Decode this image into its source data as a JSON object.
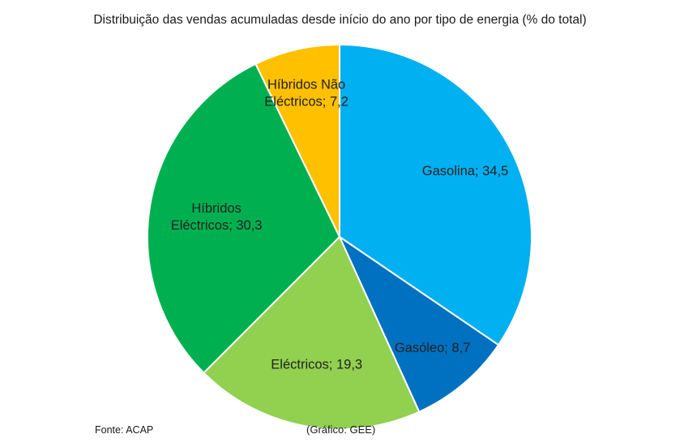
{
  "chart_data": {
    "type": "pie",
    "title": "Distribuição das vendas acumuladas desde início do ano por tipo de energia (% do total)",
    "slices": [
      {
        "name": "Gasolina",
        "value": 34.5,
        "label": "Gasolina; 34,5",
        "label_lines": [
          "Gasolina; 34,5"
        ],
        "color": "#00B0F0"
      },
      {
        "name": "Gasóleo",
        "value": 8.7,
        "label": "Gasóleo; 8,7",
        "label_lines": [
          "Gasóleo; 8,7"
        ],
        "color": "#0070C0"
      },
      {
        "name": "Eléctricos",
        "value": 19.3,
        "label": "Eléctricos; 19,3",
        "label_lines": [
          "Eléctricos; 19,3"
        ],
        "color": "#92D050"
      },
      {
        "name": "Híbridos Eléctricos",
        "value": 30.3,
        "label": "Híbridos Eléctricos; 30,3",
        "label_lines": [
          "Híbridos",
          "Eléctricos; 30,3"
        ],
        "color": "#00B050"
      },
      {
        "name": "Híbridos Não Eléctricos",
        "value": 7.2,
        "label": "Híbridos Não Eléctricos; 7,2",
        "label_lines": [
          "Híbridos Não",
          "Eléctricos; 7,2"
        ],
        "color": "#FFC000"
      }
    ],
    "start_angle_deg": 0,
    "direction": "clockwise",
    "legend": "none"
  },
  "footer": {
    "source": "Fonte: ACAP",
    "credit": "(Gráfico: GEE)"
  }
}
